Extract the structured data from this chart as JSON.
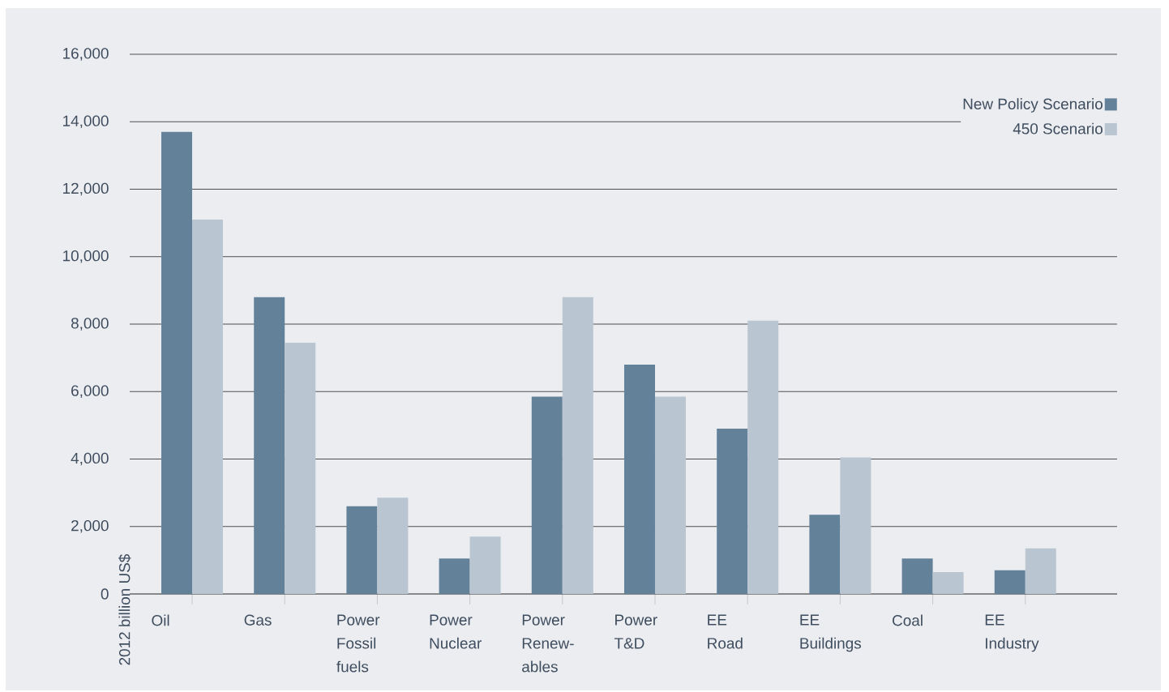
{
  "chart_data": {
    "type": "bar",
    "ylabel": "2012 billion US$",
    "categories": [
      "Oil",
      "Gas",
      "Power Fossil fuels",
      "Power Nuclear",
      "Power Renew-ables",
      "Power T&D",
      "EE Road",
      "EE Buildings",
      "Coal",
      "EE Industry"
    ],
    "series": [
      {
        "name": "New Policy Scenario",
        "color": "#64819a",
        "values": [
          13700,
          8800,
          2600,
          1050,
          5850,
          6800,
          4900,
          2350,
          1050,
          700
        ]
      },
      {
        "name": "450 Scenario",
        "color": "#b9c5d0",
        "values": [
          11100,
          7450,
          2850,
          1700,
          8800,
          5850,
          8100,
          4050,
          650,
          1350
        ]
      }
    ],
    "ylim": [
      0,
      16000
    ],
    "yticks": [
      0,
      {
        "value": 2000,
        "label": "2,000"
      },
      {
        "value": 4000,
        "label": "4,000"
      },
      {
        "value": 6000,
        "label": "6,000"
      },
      {
        "value": 8000,
        "label": "8,000"
      },
      {
        "value": 10000,
        "label": "10,000"
      },
      {
        "value": 12000,
        "label": "12,000"
      },
      {
        "value": 14000,
        "label": "14,000"
      },
      {
        "value": 16000,
        "label": "16,000"
      }
    ],
    "grid": "y",
    "legend": "top right"
  }
}
